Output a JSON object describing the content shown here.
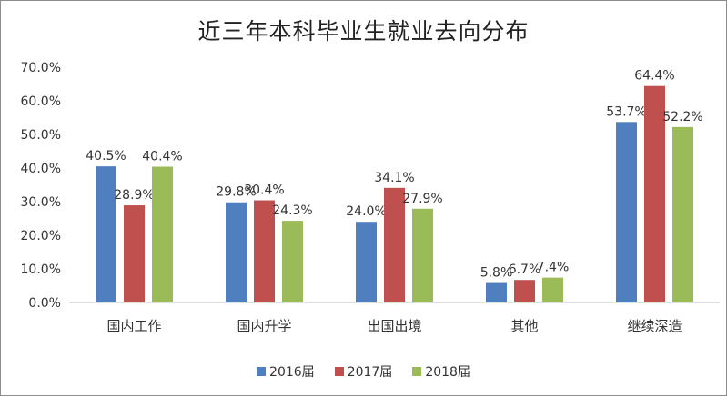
{
  "chart_data": {
    "type": "bar",
    "title": "近三年本科毕业生就业去向分布",
    "xlabel": "",
    "ylabel": "",
    "categories": [
      "国内工作",
      "国内升学",
      "出国出境",
      "其他",
      "继续深造"
    ],
    "series": [
      {
        "name": "2016届",
        "values": [
          40.5,
          29.8,
          24.0,
          5.8,
          53.7
        ],
        "color": "#4f7fbe"
      },
      {
        "name": "2017届",
        "values": [
          28.9,
          30.4,
          34.1,
          6.7,
          64.4
        ],
        "color": "#c0504d"
      },
      {
        "name": "2018届",
        "values": [
          40.4,
          24.3,
          27.9,
          7.4,
          52.2
        ],
        "color": "#9bbb59"
      }
    ],
    "ylim": [
      0,
      70
    ],
    "yticks": [
      "0.0%",
      "10.0%",
      "20.0%",
      "30.0%",
      "40.0%",
      "50.0%",
      "60.0%",
      "70.0%"
    ],
    "value_suffix": "%",
    "grid": false,
    "legend_position": "bottom"
  }
}
